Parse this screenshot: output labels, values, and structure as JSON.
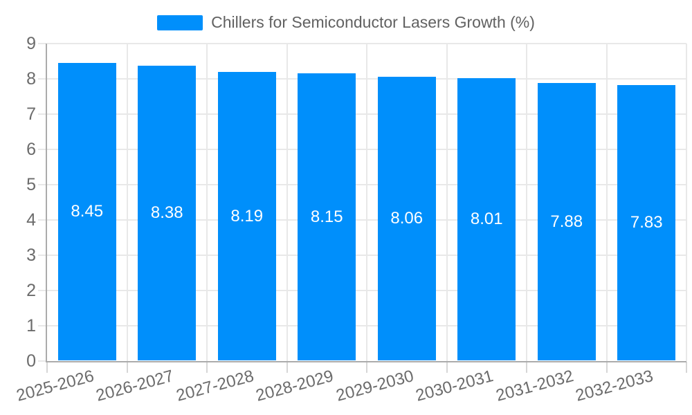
{
  "legend": {
    "label": "Chillers for Semiconductor Lasers Growth (%)",
    "swatch_color": "#008FFB"
  },
  "chart_data": {
    "type": "bar",
    "title": "Chillers for Semiconductor Lasers Growth (%)",
    "categories": [
      "2025-2026",
      "2026-2027",
      "2027-2028",
      "2028-2029",
      "2029-2030",
      "2030-2031",
      "2031-2032",
      "2032-2033"
    ],
    "values": [
      8.45,
      8.38,
      8.19,
      8.15,
      8.06,
      8.01,
      7.88,
      7.83
    ],
    "value_labels": [
      "8.45",
      "8.38",
      "8.19",
      "8.15",
      "8.06",
      "8.01",
      "7.88",
      "7.83"
    ],
    "xlabel": "",
    "ylabel": "",
    "ylim": [
      0,
      9
    ],
    "ytick_labels": [
      "0",
      "1",
      "2",
      "3",
      "4",
      "5",
      "6",
      "7",
      "8",
      "9"
    ],
    "grid": true,
    "legend_position": "top",
    "bar_color": "#008FFB",
    "bar_label_color": "#ffffff",
    "axis_label_color": "#6b6b6b",
    "grid_color": "#e8e8e8",
    "axis_line_color": "#ababab"
  }
}
